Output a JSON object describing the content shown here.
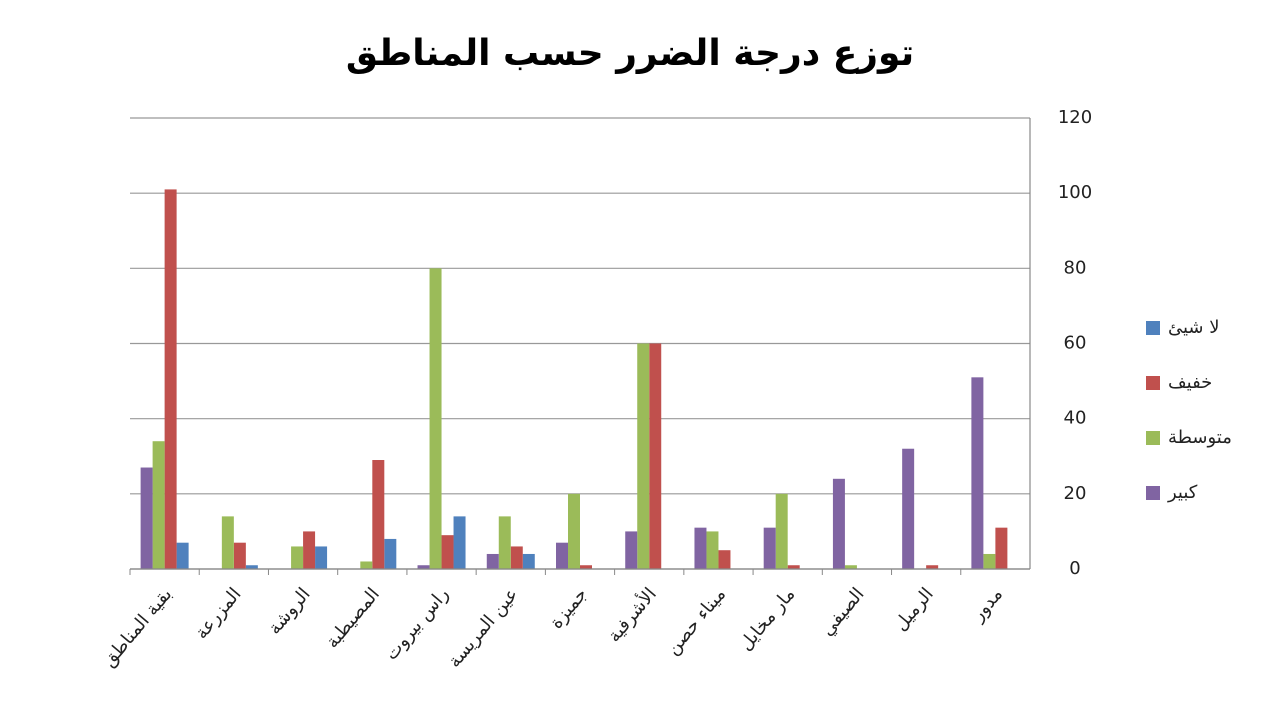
{
  "chart_data": {
    "type": "bar",
    "title": "توزع درجة الضرر حسب المناطق",
    "categories": [
      "بقية المناطق",
      "المزرعة",
      "الروشة",
      "المصيطبة",
      "راس بيروت",
      "عين المريسة",
      "جميزة",
      "الأشرفية",
      "ميناء حصن",
      "مار مخايل",
      "الصيفي",
      "الرميل",
      "مدور"
    ],
    "series": [
      {
        "name": "لا شيئ",
        "color": "#4f81bd",
        "values": [
          7,
          1,
          6,
          8,
          14,
          4,
          0,
          0,
          0,
          0,
          0,
          0,
          0
        ]
      },
      {
        "name": "خفيف",
        "color": "#c0504d",
        "values": [
          101,
          7,
          10,
          29,
          9,
          6,
          1,
          60,
          5,
          1,
          0,
          1,
          11
        ]
      },
      {
        "name": "متوسطة",
        "color": "#9bbb59",
        "values": [
          34,
          14,
          6,
          2,
          80,
          14,
          20,
          60,
          10,
          20,
          1,
          0,
          4
        ]
      },
      {
        "name": "كبير",
        "color": "#8064a2",
        "values": [
          27,
          0,
          0,
          0,
          1,
          4,
          7,
          10,
          11,
          11,
          24,
          32,
          51
        ]
      }
    ],
    "ylim": [
      0,
      120
    ],
    "yticks": [
      0,
      20,
      40,
      60,
      80,
      100,
      120
    ],
    "grid": true,
    "y_axis_side": "right",
    "legend": "right"
  }
}
